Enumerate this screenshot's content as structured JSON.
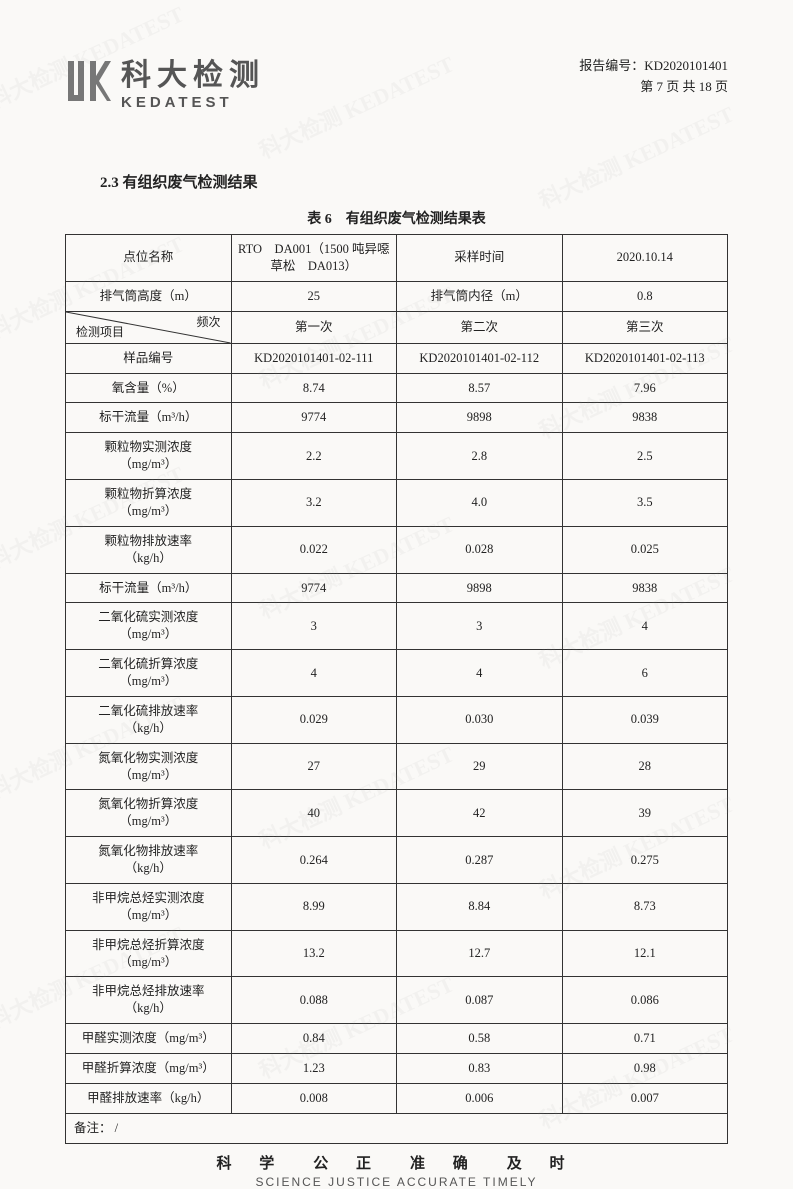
{
  "header": {
    "logo_cn": "科大检测",
    "logo_en": "KEDATEST",
    "report_no_label": "报告编号：",
    "report_no": "KD2020101401",
    "page_info": "第 7 页 共 18 页"
  },
  "section": {
    "number": "2.3",
    "title": "有组织废气检测结果"
  },
  "table": {
    "caption": "表 6　有组织废气检测结果表",
    "headers": {
      "point_name": "点位名称",
      "point_value": "RTO　DA001（1500 吨异噁草松　DA013）",
      "sample_time_label": "采样时间",
      "sample_time": "2020.10.14",
      "stack_height_label": "排气筒高度（m）",
      "stack_height": "25",
      "stack_diameter_label": "排气筒内径（m）",
      "stack_diameter": "0.8",
      "freq_label": "频次",
      "item_label": "检测项目",
      "freq1": "第一次",
      "freq2": "第二次",
      "freq3": "第三次",
      "sample_no_label": "样品编号"
    },
    "sample_nos": [
      "KD2020101401-02-111",
      "KD2020101401-02-112",
      "KD2020101401-02-113"
    ],
    "rows": [
      {
        "label": "氧含量（%）",
        "v": [
          "8.74",
          "8.57",
          "7.96"
        ]
      },
      {
        "label": "标干流量（m³/h）",
        "v": [
          "9774",
          "9898",
          "9838"
        ]
      },
      {
        "label": "颗粒物实测浓度（mg/m³）",
        "v": [
          "2.2",
          "2.8",
          "2.5"
        ]
      },
      {
        "label": "颗粒物折算浓度（mg/m³）",
        "v": [
          "3.2",
          "4.0",
          "3.5"
        ]
      },
      {
        "label": "颗粒物排放速率（kg/h）",
        "v": [
          "0.022",
          "0.028",
          "0.025"
        ]
      },
      {
        "label": "标干流量（m³/h）",
        "v": [
          "9774",
          "9898",
          "9838"
        ]
      },
      {
        "label": "二氧化硫实测浓度（mg/m³）",
        "v": [
          "3",
          "3",
          "4"
        ]
      },
      {
        "label": "二氧化硫折算浓度（mg/m³）",
        "v": [
          "4",
          "4",
          "6"
        ]
      },
      {
        "label": "二氧化硫排放速率（kg/h）",
        "v": [
          "0.029",
          "0.030",
          "0.039"
        ]
      },
      {
        "label": "氮氧化物实测浓度（mg/m³）",
        "v": [
          "27",
          "29",
          "28"
        ]
      },
      {
        "label": "氮氧化物折算浓度（mg/m³）",
        "v": [
          "40",
          "42",
          "39"
        ]
      },
      {
        "label": "氮氧化物排放速率（kg/h）",
        "v": [
          "0.264",
          "0.287",
          "0.275"
        ]
      },
      {
        "label": "非甲烷总烃实测浓度（mg/m³）",
        "v": [
          "8.99",
          "8.84",
          "8.73"
        ]
      },
      {
        "label": "非甲烷总烃折算浓度（mg/m³）",
        "v": [
          "13.2",
          "12.7",
          "12.1"
        ]
      },
      {
        "label": "非甲烷总烃排放速率（kg/h）",
        "v": [
          "0.088",
          "0.087",
          "0.086"
        ]
      },
      {
        "label": "甲醛实测浓度（mg/m³）",
        "v": [
          "0.84",
          "0.58",
          "0.71"
        ]
      },
      {
        "label": "甲醛折算浓度（mg/m³）",
        "v": [
          "1.23",
          "0.83",
          "0.98"
        ]
      },
      {
        "label": "甲醛排放速率（kg/h）",
        "v": [
          "0.008",
          "0.006",
          "0.007"
        ]
      }
    ],
    "note_label": "备注：",
    "note_value": "/"
  },
  "footer": {
    "cn": "科 学　公 正　准 确　及 时",
    "en": "SCIENCE JUSTICE ACCURATE TIMELY"
  },
  "watermark_text": "科大检测 KEDATEST",
  "colors": {
    "text": "#222222",
    "border": "#333333",
    "bg": "#faf9f7",
    "logo": "#555555"
  }
}
